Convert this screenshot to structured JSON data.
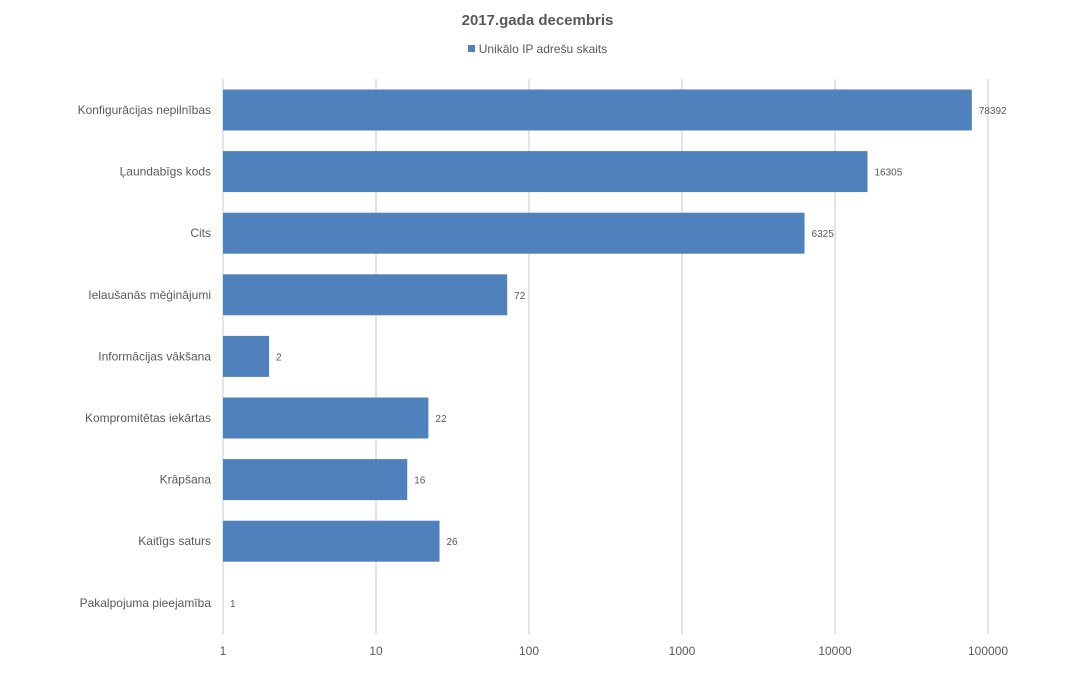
{
  "chart_data": {
    "type": "bar",
    "orientation": "horizontal",
    "title": "2017.gada decembris",
    "x_scale": "log10",
    "xlim": [
      1,
      100000
    ],
    "x_ticks": [
      "1",
      "10",
      "100",
      "1000",
      "10000",
      "100000"
    ],
    "x_tick_values": [
      1,
      10,
      100,
      1000,
      10000,
      100000
    ],
    "grid": "vertical",
    "legend_position": "top",
    "bar_color": "#4F81BD",
    "categories": [
      "Konfigurācijas nepilnības",
      "Ļaundabīgs kods",
      "Cits",
      "Ielaušanās mēģinājumi",
      "Informācijas vākšana",
      "Kompromitētas iekārtas",
      "Krāpšana",
      "Kaitīgs saturs",
      "Pakalpojuma pieejamība"
    ],
    "series": [
      {
        "name": "Unikālo IP adrešu skaits",
        "values": [
          78392,
          16305,
          6325,
          72,
          2,
          22,
          16,
          26,
          1
        ],
        "labels": [
          "78392",
          "16305",
          "6325",
          "72",
          "2",
          "22",
          "16",
          "26",
          "1"
        ]
      }
    ]
  }
}
